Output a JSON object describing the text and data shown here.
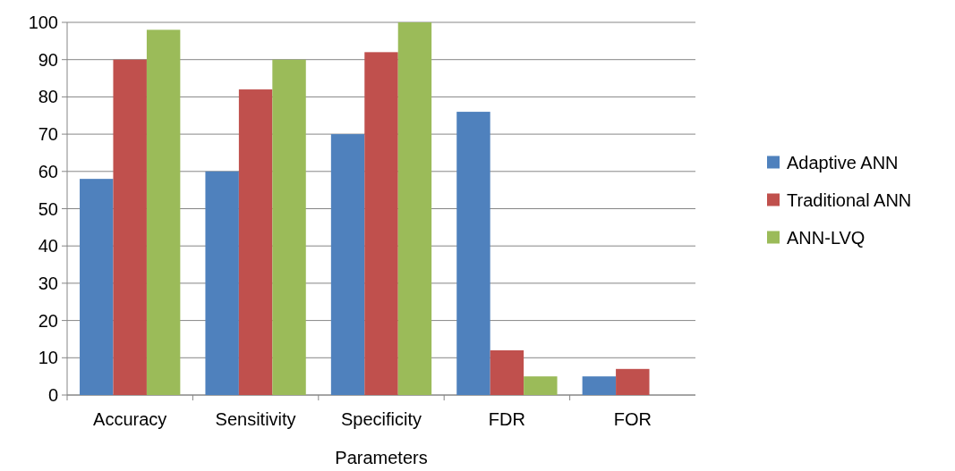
{
  "chart_data": {
    "type": "bar",
    "xlabel": "Parameters",
    "categories": [
      "Accuracy",
      "Sensitivity",
      "Specificity",
      "FDR",
      "FOR"
    ],
    "series": [
      {
        "name": "Adaptive ANN",
        "color": "#4f81bd",
        "values": [
          58,
          60,
          70,
          76,
          5
        ]
      },
      {
        "name": "Traditional ANN",
        "color": "#c0504d",
        "values": [
          90,
          82,
          92,
          12,
          7
        ]
      },
      {
        "name": "ANN-LVQ",
        "color": "#9bbb59",
        "values": [
          98,
          90,
          100,
          5,
          0
        ]
      }
    ],
    "ylim": [
      0,
      100
    ],
    "yticks": [
      0,
      10,
      20,
      30,
      40,
      50,
      60,
      70,
      80,
      90,
      100
    ],
    "grid": "y",
    "legend": "right"
  }
}
